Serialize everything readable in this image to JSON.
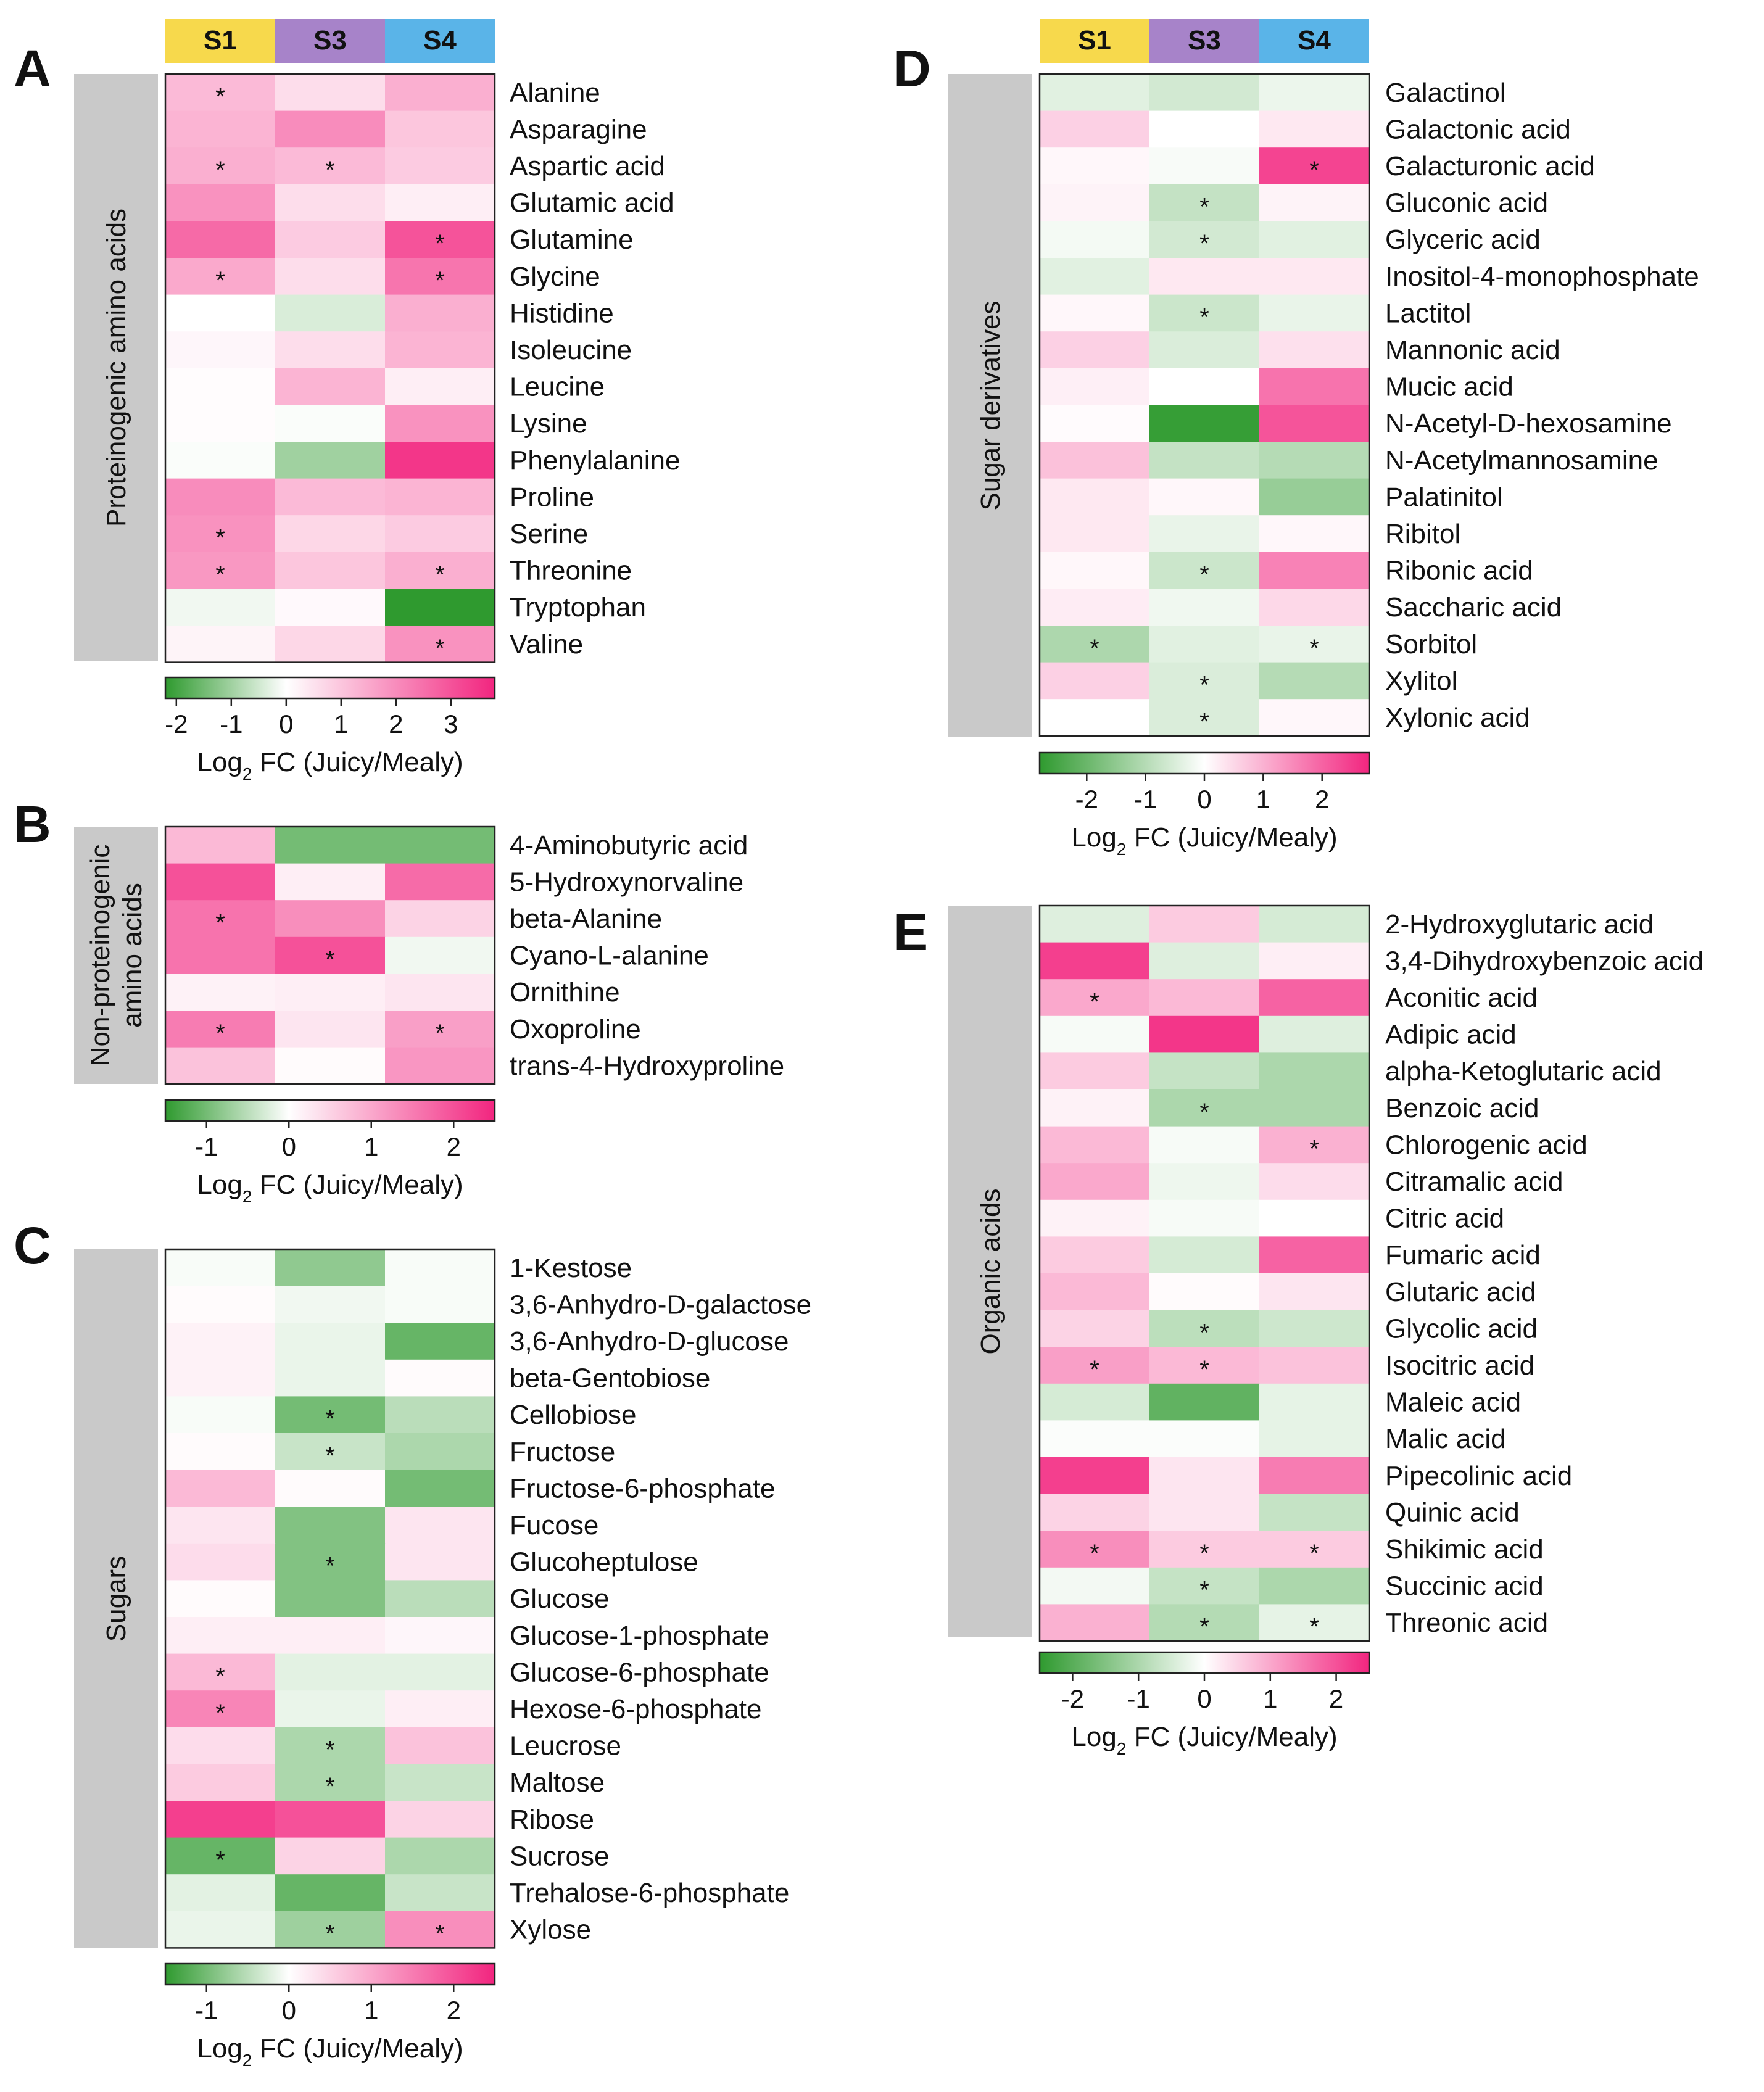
{
  "columns": [
    {
      "name": "S1",
      "color": "#f7d94c"
    },
    {
      "name": "S3",
      "color": "#a783c9"
    },
    {
      "name": "S4",
      "color": "#5ab4e8"
    }
  ],
  "colorscale": {
    "neg": "#2f9a2f",
    "mid": "#ffffff",
    "pos": "#f2257f"
  },
  "axis_title": {
    "main": "Log",
    "sub": "2",
    "rest": " FC (Juicy/Mealy)"
  },
  "chart_data": [
    {
      "type": "heatmap",
      "panel": "A",
      "group": [
        "Proteinogenic amino acids"
      ],
      "columns": [
        "S1",
        "S3",
        "S4"
      ],
      "range": [
        -2.2,
        3.8
      ],
      "ticks": [
        -2,
        -1,
        0,
        1,
        2,
        3
      ],
      "tick_labels": [
        "-2",
        "-1",
        "0",
        "1",
        "2",
        "3"
      ],
      "rows": [
        {
          "name": "Alanine",
          "values": [
            1.2,
            0.6,
            1.4
          ],
          "sig": [
            1,
            0,
            0
          ]
        },
        {
          "name": "Asparagine",
          "values": [
            1.3,
            2.0,
            1.0
          ],
          "sig": [
            0,
            0,
            0
          ]
        },
        {
          "name": "Aspartic acid",
          "values": [
            1.4,
            1.2,
            0.9
          ],
          "sig": [
            1,
            1,
            0
          ]
        },
        {
          "name": "Glutamic acid",
          "values": [
            1.9,
            0.6,
            0.3
          ],
          "sig": [
            0,
            0,
            0
          ]
        },
        {
          "name": "Glutamine",
          "values": [
            2.6,
            0.9,
            3.0
          ],
          "sig": [
            0,
            0,
            1
          ]
        },
        {
          "name": "Glycine",
          "values": [
            1.5,
            0.6,
            2.4
          ],
          "sig": [
            1,
            0,
            1
          ]
        },
        {
          "name": "Histidine",
          "values": [
            0.0,
            -0.4,
            1.4
          ],
          "sig": [
            0,
            0,
            0
          ]
        },
        {
          "name": "Isoleucine",
          "values": [
            0.15,
            0.6,
            1.3
          ],
          "sig": [
            0,
            0,
            0
          ]
        },
        {
          "name": "Leucine",
          "values": [
            0.05,
            1.3,
            0.3
          ],
          "sig": [
            0,
            0,
            0
          ]
        },
        {
          "name": "Lysine",
          "values": [
            0.05,
            -0.05,
            1.9
          ],
          "sig": [
            0,
            0,
            0
          ]
        },
        {
          "name": "Phenylalanine",
          "values": [
            -0.05,
            -1.0,
            3.5
          ],
          "sig": [
            0,
            0,
            0
          ]
        },
        {
          "name": "Proline",
          "values": [
            2.0,
            1.2,
            1.3
          ],
          "sig": [
            0,
            0,
            0
          ]
        },
        {
          "name": "Serine",
          "values": [
            1.9,
            0.7,
            0.9
          ],
          "sig": [
            1,
            0,
            0
          ]
        },
        {
          "name": "Threonine",
          "values": [
            1.8,
            1.0,
            1.4
          ],
          "sig": [
            1,
            0,
            1
          ]
        },
        {
          "name": "Tryptophan",
          "values": [
            -0.15,
            0.1,
            -2.2
          ],
          "sig": [
            0,
            0,
            0
          ]
        },
        {
          "name": "Valine",
          "values": [
            0.2,
            0.7,
            1.9
          ],
          "sig": [
            0,
            0,
            1
          ]
        }
      ]
    },
    {
      "type": "heatmap",
      "panel": "B",
      "group": [
        "Non-proteinogenic",
        "amino acids"
      ],
      "columns": [
        "S1",
        "S3",
        "S4"
      ],
      "range": [
        -1.5,
        2.5
      ],
      "ticks": [
        -1,
        0,
        1,
        2
      ],
      "tick_labels": [
        "-1",
        "0",
        "1",
        "2"
      ],
      "rows": [
        {
          "name": "4-Aminobutyric acid",
          "values": [
            0.8,
            -1.0,
            -1.0
          ],
          "sig": [
            0,
            0,
            0
          ]
        },
        {
          "name": "5-Hydroxynorvaline",
          "values": [
            2.0,
            0.2,
            1.7
          ],
          "sig": [
            0,
            0,
            0
          ]
        },
        {
          "name": "beta-Alanine",
          "values": [
            1.6,
            1.3,
            0.5
          ],
          "sig": [
            1,
            0,
            0
          ]
        },
        {
          "name": "Cyano-L-alanine",
          "values": [
            1.6,
            2.0,
            -0.1
          ],
          "sig": [
            0,
            1,
            0
          ]
        },
        {
          "name": "Ornithine",
          "values": [
            0.15,
            0.2,
            0.3
          ],
          "sig": [
            0,
            0,
            0
          ]
        },
        {
          "name": "Oxoproline",
          "values": [
            1.5,
            0.3,
            1.1
          ],
          "sig": [
            1,
            0,
            1
          ]
        },
        {
          "name": "trans-4-Hydroxyproline",
          "values": [
            0.7,
            0.05,
            1.2
          ],
          "sig": [
            0,
            0,
            0
          ]
        }
      ]
    },
    {
      "type": "heatmap",
      "panel": "C",
      "group": [
        "Sugars"
      ],
      "columns": [
        "S1",
        "S3",
        "S4"
      ],
      "range": [
        -1.5,
        2.5
      ],
      "ticks": [
        -1,
        0,
        1,
        2
      ],
      "tick_labels": [
        "-1",
        "0",
        "1",
        "2"
      ],
      "rows": [
        {
          "name": "1-Kestose",
          "values": [
            -0.05,
            -0.8,
            -0.05
          ],
          "sig": [
            0,
            0,
            0
          ]
        },
        {
          "name": "3,6-Anhydro-D-galactose",
          "values": [
            0.05,
            -0.1,
            -0.05
          ],
          "sig": [
            0,
            0,
            0
          ]
        },
        {
          "name": "3,6-Anhydro-D-glucose",
          "values": [
            0.15,
            -0.15,
            -1.1
          ],
          "sig": [
            0,
            0,
            0
          ]
        },
        {
          "name": "beta-Gentobiose",
          "values": [
            0.15,
            -0.15,
            0.05
          ],
          "sig": [
            0,
            0,
            0
          ]
        },
        {
          "name": "Cellobiose",
          "values": [
            -0.05,
            -1.0,
            -0.5
          ],
          "sig": [
            0,
            1,
            0
          ]
        },
        {
          "name": "Fructose",
          "values": [
            0.05,
            -0.4,
            -0.6
          ],
          "sig": [
            0,
            1,
            0
          ]
        },
        {
          "name": "Fructose-6-phosphate",
          "values": [
            0.8,
            0.05,
            -1.0
          ],
          "sig": [
            0,
            0,
            0
          ]
        },
        {
          "name": "Fucose",
          "values": [
            0.3,
            -0.9,
            0.3
          ],
          "sig": [
            0,
            0,
            0
          ]
        },
        {
          "name": "Glucoheptulose",
          "values": [
            0.4,
            -0.9,
            0.3
          ],
          "sig": [
            0,
            1,
            0
          ]
        },
        {
          "name": "Glucose",
          "values": [
            0.05,
            -0.9,
            -0.5
          ],
          "sig": [
            0,
            0,
            0
          ]
        },
        {
          "name": "Glucose-1-phosphate",
          "values": [
            0.2,
            0.2,
            0.1
          ],
          "sig": [
            0,
            0,
            0
          ]
        },
        {
          "name": "Glucose-6-phosphate",
          "values": [
            0.8,
            -0.2,
            -0.2
          ],
          "sig": [
            1,
            0,
            0
          ]
        },
        {
          "name": "Hexose-6-phosphate",
          "values": [
            1.4,
            -0.15,
            0.2
          ],
          "sig": [
            1,
            0,
            0
          ]
        },
        {
          "name": "Leucrose",
          "values": [
            0.4,
            -0.6,
            0.7
          ],
          "sig": [
            0,
            1,
            0
          ]
        },
        {
          "name": "Maltose",
          "values": [
            0.6,
            -0.6,
            -0.4
          ],
          "sig": [
            0,
            1,
            0
          ]
        },
        {
          "name": "Ribose",
          "values": [
            2.2,
            2.0,
            0.5
          ],
          "sig": [
            0,
            0,
            0
          ]
        },
        {
          "name": "Sucrose",
          "values": [
            -1.1,
            0.5,
            -0.6
          ],
          "sig": [
            1,
            0,
            0
          ]
        },
        {
          "name": "Trehalose-6-phosphate",
          "values": [
            -0.2,
            -1.1,
            -0.4
          ],
          "sig": [
            0,
            0,
            0
          ]
        },
        {
          "name": "Xylose",
          "values": [
            -0.15,
            -0.7,
            1.3
          ],
          "sig": [
            0,
            1,
            1
          ]
        }
      ]
    },
    {
      "type": "heatmap",
      "panel": "D",
      "group": [
        "Sugar derivatives"
      ],
      "columns": [
        "S1",
        "S3",
        "S4"
      ],
      "range": [
        -2.8,
        2.8
      ],
      "ticks": [
        -2,
        -1,
        0,
        1,
        2
      ],
      "tick_labels": [
        "-2",
        "-1",
        "0",
        "1",
        "2"
      ],
      "rows": [
        {
          "name": "Galactinol",
          "values": [
            -0.4,
            -0.6,
            -0.25
          ],
          "sig": [
            0,
            0,
            0
          ]
        },
        {
          "name": "Galactonic acid",
          "values": [
            0.6,
            0.0,
            0.3
          ],
          "sig": [
            0,
            0,
            0
          ]
        },
        {
          "name": "Galacturonic acid",
          "values": [
            0.1,
            -0.1,
            2.4
          ],
          "sig": [
            0,
            0,
            1
          ]
        },
        {
          "name": "Gluconic acid",
          "values": [
            0.15,
            -0.8,
            0.15
          ],
          "sig": [
            0,
            1,
            0
          ]
        },
        {
          "name": "Glyceric acid",
          "values": [
            -0.15,
            -0.6,
            -0.4
          ],
          "sig": [
            0,
            1,
            0
          ]
        },
        {
          "name": "Inositol-4-monophosphate",
          "values": [
            -0.4,
            0.3,
            0.3
          ],
          "sig": [
            0,
            0,
            0
          ]
        },
        {
          "name": "Lactitol",
          "values": [
            0.1,
            -0.7,
            -0.3
          ],
          "sig": [
            0,
            1,
            0
          ]
        },
        {
          "name": "Mannonic acid",
          "values": [
            0.6,
            -0.5,
            0.4
          ],
          "sig": [
            0,
            0,
            0
          ]
        },
        {
          "name": "Mucic acid",
          "values": [
            0.2,
            0.0,
            1.8
          ],
          "sig": [
            0,
            0,
            0
          ]
        },
        {
          "name": "N-Acetyl-D-hexosamine",
          "values": [
            0.05,
            -2.7,
            2.2
          ],
          "sig": [
            0,
            0,
            0
          ]
        },
        {
          "name": "N-Acetylmannosamine",
          "values": [
            0.8,
            -0.8,
            -1.0
          ],
          "sig": [
            0,
            0,
            0
          ]
        },
        {
          "name": "Palatinitol",
          "values": [
            0.3,
            0.1,
            -1.4
          ],
          "sig": [
            0,
            0,
            0
          ]
        },
        {
          "name": "Ribitol",
          "values": [
            0.3,
            -0.3,
            0.1
          ],
          "sig": [
            0,
            0,
            0
          ]
        },
        {
          "name": "Ribonic acid",
          "values": [
            0.1,
            -0.7,
            1.6
          ],
          "sig": [
            0,
            1,
            0
          ]
        },
        {
          "name": "Saccharic acid",
          "values": [
            0.25,
            -0.2,
            0.5
          ],
          "sig": [
            0,
            0,
            0
          ]
        },
        {
          "name": "Sorbitol",
          "values": [
            -1.1,
            -0.4,
            -0.3
          ],
          "sig": [
            1,
            0,
            1
          ]
        },
        {
          "name": "Xylitol",
          "values": [
            0.6,
            -0.5,
            -1.0
          ],
          "sig": [
            0,
            1,
            0
          ]
        },
        {
          "name": "Xylonic acid",
          "values": [
            0.0,
            -0.5,
            0.1
          ],
          "sig": [
            0,
            1,
            0
          ]
        }
      ]
    },
    {
      "type": "heatmap",
      "panel": "E",
      "group": [
        "Organic acids"
      ],
      "columns": [
        "S1",
        "S3",
        "S4"
      ],
      "range": [
        -2.5,
        2.5
      ],
      "ticks": [
        -2,
        -1,
        0,
        1,
        2
      ],
      "tick_labels": [
        "-2",
        "-1",
        "0",
        "1",
        "2"
      ],
      "rows": [
        {
          "name": "2-Hydroxyglutaric acid",
          "values": [
            -0.4,
            0.6,
            -0.5
          ],
          "sig": [
            0,
            0,
            0
          ]
        },
        {
          "name": "3,4-Dihydroxybenzoic acid",
          "values": [
            2.2,
            -0.4,
            0.2
          ],
          "sig": [
            0,
            0,
            0
          ]
        },
        {
          "name": "Aconitic acid",
          "values": [
            1.0,
            0.8,
            1.8
          ],
          "sig": [
            1,
            0,
            0
          ]
        },
        {
          "name": "Adipic acid",
          "values": [
            -0.1,
            2.3,
            -0.4
          ],
          "sig": [
            0,
            0,
            0
          ]
        },
        {
          "name": "alpha-Ketoglutaric acid",
          "values": [
            0.6,
            -0.7,
            -1.0
          ],
          "sig": [
            0,
            0,
            0
          ]
        },
        {
          "name": "Benzoic acid",
          "values": [
            0.15,
            -1.0,
            -1.0
          ],
          "sig": [
            0,
            1,
            0
          ]
        },
        {
          "name": "Chlorogenic acid",
          "values": [
            0.8,
            -0.1,
            0.9
          ],
          "sig": [
            0,
            0,
            1
          ]
        },
        {
          "name": "Citramalic acid",
          "values": [
            1.0,
            -0.2,
            0.4
          ],
          "sig": [
            0,
            0,
            0
          ]
        },
        {
          "name": "Citric acid",
          "values": [
            0.15,
            -0.1,
            0.0
          ],
          "sig": [
            0,
            0,
            0
          ]
        },
        {
          "name": "Fumaric acid",
          "values": [
            0.6,
            -0.5,
            1.8
          ],
          "sig": [
            0,
            0,
            0
          ]
        },
        {
          "name": "Glutaric acid",
          "values": [
            0.8,
            0.05,
            0.3
          ],
          "sig": [
            0,
            0,
            0
          ]
        },
        {
          "name": "Glycolic acid",
          "values": [
            0.5,
            -0.8,
            -0.6
          ],
          "sig": [
            0,
            1,
            0
          ]
        },
        {
          "name": "Isocitric acid",
          "values": [
            1.1,
            0.8,
            0.7
          ],
          "sig": [
            1,
            1,
            0
          ]
        },
        {
          "name": "Maleic acid",
          "values": [
            -0.5,
            -1.9,
            -0.3
          ],
          "sig": [
            0,
            0,
            0
          ]
        },
        {
          "name": "Malic acid",
          "values": [
            -0.05,
            -0.05,
            -0.3
          ],
          "sig": [
            0,
            0,
            0
          ]
        },
        {
          "name": "Pipecolinic acid",
          "values": [
            2.2,
            0.3,
            1.5
          ],
          "sig": [
            0,
            0,
            0
          ]
        },
        {
          "name": "Quinic acid",
          "values": [
            0.5,
            0.3,
            -0.7
          ],
          "sig": [
            0,
            0,
            0
          ]
        },
        {
          "name": "Shikimic acid",
          "values": [
            1.3,
            0.6,
            0.6
          ],
          "sig": [
            1,
            1,
            1
          ]
        },
        {
          "name": "Succinic acid",
          "values": [
            -0.15,
            -0.7,
            -1.0
          ],
          "sig": [
            0,
            1,
            0
          ]
        },
        {
          "name": "Threonic acid",
          "values": [
            0.9,
            -0.9,
            -0.3
          ],
          "sig": [
            0,
            1,
            1
          ]
        }
      ]
    }
  ]
}
